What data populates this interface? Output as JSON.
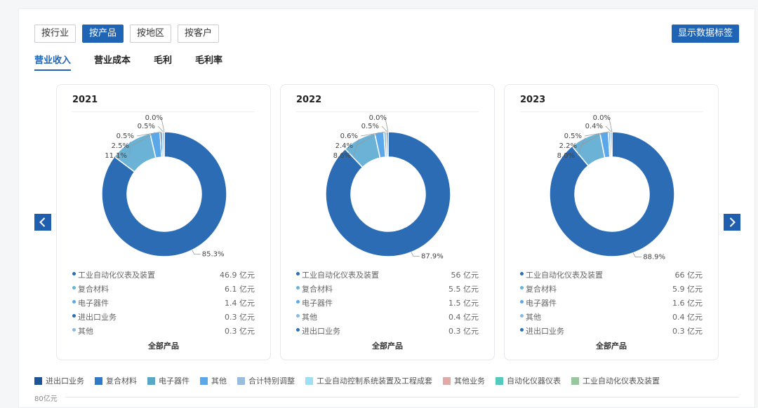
{
  "filters": [
    "按行业",
    "按产品",
    "按地区",
    "按客户"
  ],
  "active_filter": 1,
  "label_toggle": "显示数据标签",
  "metric_tabs": [
    "营业收入",
    "营业成本",
    "毛利",
    "毛利率"
  ],
  "active_tab": 0,
  "colors": {
    "primary": "#2064b5",
    "auto_instruments": "#2b6cb4",
    "composite": "#6ab2d6",
    "electronics": "#5aa8ea",
    "other": "#8bb8e0",
    "import_export": "#2a6fb5"
  },
  "chart_data": [
    {
      "type": "pie",
      "year": "2021",
      "footer": "全部产品",
      "slices": [
        {
          "name": "工业自动化仪表及装置",
          "value": 46.9,
          "unit": "亿元",
          "pct": "85.3%",
          "color": "#2b6cb4"
        },
        {
          "name": "复合材料",
          "value": 6.1,
          "unit": "亿元",
          "pct": "11.1%",
          "color": "#6ab2d6"
        },
        {
          "name": "电子器件",
          "value": 1.4,
          "unit": "亿元",
          "pct": "2.5%",
          "color": "#5aa8ea"
        },
        {
          "name": "进出口业务",
          "value": 0.3,
          "unit": "亿元",
          "pct": "0.5%",
          "color": "#2a6fb5"
        },
        {
          "name": "其他",
          "value": 0.3,
          "unit": "亿元",
          "pct": "0.5%",
          "color": "#8bb8e0"
        }
      ],
      "extra_label": "0.0%"
    },
    {
      "type": "pie",
      "year": "2022",
      "footer": "全部产品",
      "slices": [
        {
          "name": "工业自动化仪表及装置",
          "value": 56,
          "unit": "亿元",
          "pct": "87.9%",
          "color": "#2b6cb4"
        },
        {
          "name": "复合材料",
          "value": 5.5,
          "unit": "亿元",
          "pct": "8.6%",
          "color": "#6ab2d6"
        },
        {
          "name": "电子器件",
          "value": 1.5,
          "unit": "亿元",
          "pct": "2.4%",
          "color": "#5aa8ea"
        },
        {
          "name": "其他",
          "value": 0.4,
          "unit": "亿元",
          "pct": "0.6%",
          "color": "#8bb8e0"
        },
        {
          "name": "进出口业务",
          "value": 0.3,
          "unit": "亿元",
          "pct": "0.5%",
          "color": "#2a6fb5"
        }
      ],
      "extra_label": "0.0%"
    },
    {
      "type": "pie",
      "year": "2023",
      "footer": "全部产品",
      "slices": [
        {
          "name": "工业自动化仪表及装置",
          "value": 66,
          "unit": "亿元",
          "pct": "88.9%",
          "color": "#2b6cb4"
        },
        {
          "name": "复合材料",
          "value": 5.9,
          "unit": "亿元",
          "pct": "8.0%",
          "color": "#6ab2d6"
        },
        {
          "name": "电子器件",
          "value": 1.6,
          "unit": "亿元",
          "pct": "2.2%",
          "color": "#5aa8ea"
        },
        {
          "name": "其他",
          "value": 0.4,
          "unit": "亿元",
          "pct": "0.5%",
          "color": "#8bb8e0"
        },
        {
          "name": "进出口业务",
          "value": 0.3,
          "unit": "亿元",
          "pct": "0.4%",
          "color": "#2a6fb5"
        }
      ],
      "extra_label": "0.0%"
    }
  ],
  "bottom_legend": [
    {
      "name": "进出口业务",
      "color": "#1d5497"
    },
    {
      "name": "复合材料",
      "color": "#2e79c8"
    },
    {
      "name": "电子器件",
      "color": "#5aa7c4"
    },
    {
      "name": "其他",
      "color": "#5aa8ea"
    },
    {
      "name": "合计特别调整",
      "color": "#9bbcdb"
    },
    {
      "name": "工业自动控制系统装置及工程成套",
      "color": "#9edff3"
    },
    {
      "name": "其他业务",
      "color": "#e2a9a9"
    },
    {
      "name": "自动化仪器仪表",
      "color": "#56c9bf"
    },
    {
      "name": "工业自动化仪表及装置",
      "color": "#98c79f"
    }
  ],
  "axis_top_label": "80亿元"
}
